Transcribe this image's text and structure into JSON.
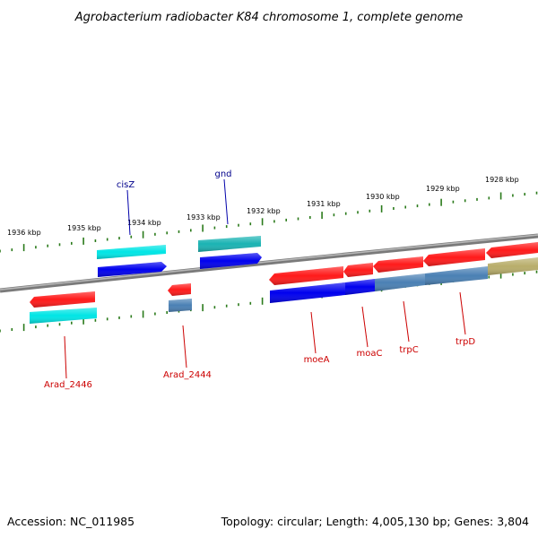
{
  "title": "Agrobacterium radiobacter K84 chromosome 1, complete genome",
  "footer": {
    "accession": "Accession: NC_011985",
    "summary": "Topology: circular; Length: 4,005,130 bp; Genes: 3,804"
  },
  "colors": {
    "red": "#ff1a1a",
    "blue": "#0000ee",
    "cyan": "#00e5e5",
    "teal": "#1ab3b3",
    "steel": "#4a80b4",
    "olive": "#b8ad6a",
    "tick": "#2a7a1a",
    "backbone": "#8c8c8c"
  },
  "kbp_labels": [
    {
      "id": "1936",
      "text": "1936 kbp"
    },
    {
      "id": "1935",
      "text": "1935 kbp"
    },
    {
      "id": "1934",
      "text": "1934 kbp"
    },
    {
      "id": "1933",
      "text": "1933 kbp"
    },
    {
      "id": "1932",
      "text": "1932 kbp"
    },
    {
      "id": "1931",
      "text": "1931 kbp"
    },
    {
      "id": "1930",
      "text": "1930 kbp"
    },
    {
      "id": "1929",
      "text": "1929 kbp"
    },
    {
      "id": "1928",
      "text": "1928 kbp"
    }
  ],
  "gene_labels": [
    {
      "id": "cisz",
      "text": "cisZ",
      "color": "blue"
    },
    {
      "id": "gnd",
      "text": "gnd",
      "color": "blue"
    },
    {
      "id": "arad2446",
      "text": "Arad_2446",
      "color": "red"
    },
    {
      "id": "arad2444",
      "text": "Arad_2444",
      "color": "red"
    },
    {
      "id": "moea",
      "text": "moeA",
      "color": "red"
    },
    {
      "id": "moac",
      "text": "moaC",
      "color": "red"
    },
    {
      "id": "trpc",
      "text": "trpC",
      "color": "red"
    },
    {
      "id": "trpd",
      "text": "trpD",
      "color": "red"
    }
  ]
}
